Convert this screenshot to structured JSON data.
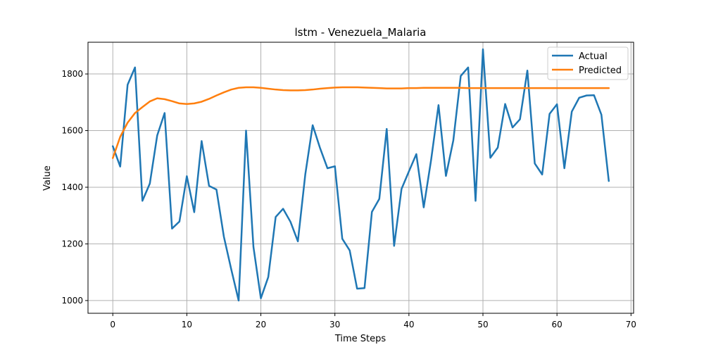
{
  "chart_data": {
    "type": "line",
    "title": "lstm - Venezuela_Malaria",
    "xlabel": "Time Steps",
    "ylabel": "Value",
    "xlim": [
      -3.35,
      70.35
    ],
    "ylim": [
      955,
      1912
    ],
    "xticks": [
      0,
      10,
      20,
      30,
      40,
      50,
      60,
      70
    ],
    "yticks": [
      1000,
      1200,
      1400,
      1600,
      1800
    ],
    "grid": true,
    "legend_position": "top-right",
    "series": [
      {
        "name": "Actual",
        "color": "#1f77b4",
        "x": [
          0,
          1,
          2,
          3,
          4,
          5,
          6,
          7,
          8,
          9,
          10,
          11,
          12,
          13,
          14,
          15,
          16,
          17,
          18,
          19,
          20,
          21,
          22,
          23,
          24,
          25,
          26,
          27,
          28,
          29,
          30,
          31,
          32,
          33,
          34,
          35,
          36,
          37,
          38,
          39,
          40,
          41,
          42,
          43,
          44,
          45,
          46,
          47,
          48,
          49,
          50,
          51,
          52,
          53,
          54,
          55,
          56,
          57,
          58,
          59,
          60,
          61,
          62,
          63,
          64,
          65,
          66,
          67
        ],
        "values": [
          1545,
          1473,
          1762,
          1823,
          1352,
          1413,
          1583,
          1662,
          1254,
          1279,
          1439,
          1312,
          1563,
          1405,
          1392,
          1226,
          1110,
          1000,
          1600,
          1189,
          1008,
          1083,
          1295,
          1324,
          1278,
          1209,
          1445,
          1619,
          1538,
          1467,
          1474,
          1218,
          1177,
          1042,
          1044,
          1313,
          1359,
          1606,
          1193,
          1394,
          1456,
          1517,
          1329,
          1497,
          1690,
          1440,
          1566,
          1793,
          1823,
          1352,
          1887,
          1504,
          1540,
          1694,
          1611,
          1640,
          1812,
          1484,
          1445,
          1659,
          1693,
          1467,
          1667,
          1716,
          1724,
          1725,
          1656,
          1422
        ]
      },
      {
        "name": "Predicted",
        "color": "#ff7f0e",
        "x": [
          0,
          1,
          2,
          3,
          4,
          5,
          6,
          7,
          8,
          9,
          10,
          11,
          12,
          13,
          14,
          15,
          16,
          17,
          18,
          19,
          20,
          21,
          22,
          23,
          24,
          25,
          26,
          27,
          28,
          29,
          30,
          31,
          32,
          33,
          34,
          35,
          36,
          37,
          38,
          39,
          40,
          41,
          42,
          43,
          44,
          45,
          46,
          47,
          48,
          49,
          50,
          51,
          52,
          53,
          54,
          55,
          56,
          57,
          58,
          59,
          60,
          61,
          62,
          63,
          64,
          65,
          66,
          67
        ],
        "values": [
          1503,
          1578,
          1628,
          1662,
          1683,
          1703,
          1714,
          1711,
          1704,
          1696,
          1694,
          1696,
          1702,
          1712,
          1724,
          1735,
          1745,
          1751,
          1753,
          1753,
          1751,
          1748,
          1745,
          1743,
          1742,
          1742,
          1743,
          1745,
          1748,
          1750,
          1752,
          1753,
          1753,
          1753,
          1752,
          1751,
          1750,
          1749,
          1749,
          1749,
          1750,
          1750,
          1751,
          1751,
          1751,
          1751,
          1751,
          1751,
          1750,
          1750,
          1750,
          1750,
          1750,
          1750,
          1750,
          1750,
          1750,
          1750,
          1750,
          1750,
          1750,
          1750,
          1750,
          1750,
          1750,
          1750,
          1750,
          1750
        ]
      }
    ]
  }
}
